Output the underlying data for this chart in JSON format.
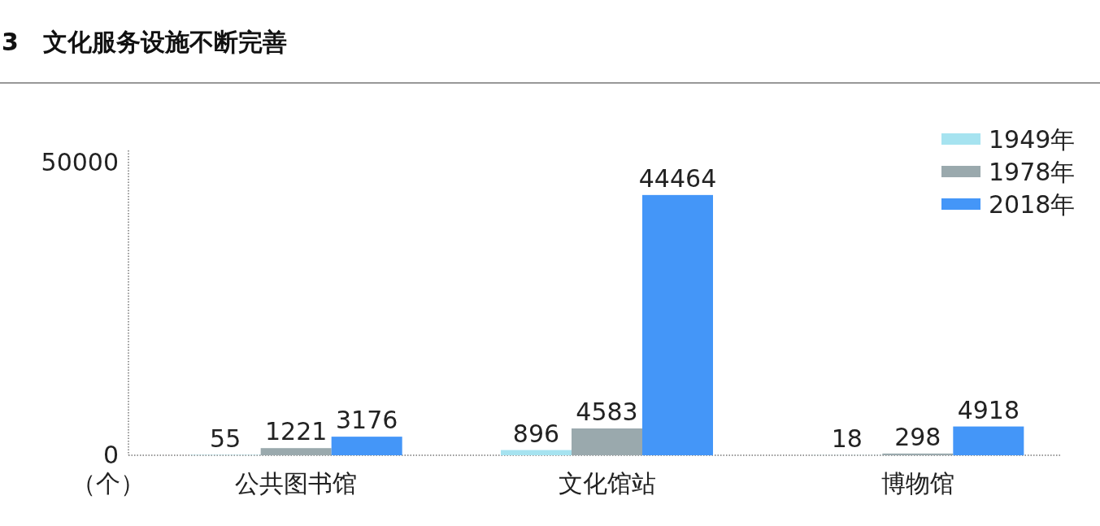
{
  "chart_data": {
    "type": "bar",
    "title": "3　文化服务设施不断完善",
    "ylabel": "（个）",
    "categories": [
      "公共图书馆",
      "文化馆站",
      "博物馆"
    ],
    "series": [
      {
        "name": "1949年",
        "color": "#a6e3f0",
        "values": [
          55,
          896,
          18
        ]
      },
      {
        "name": "1978年",
        "color": "#9aa9ad",
        "values": [
          1221,
          4583,
          298
        ]
      },
      {
        "name": "2018年",
        "color": "#4496f8",
        "values": [
          3176,
          44464,
          4918
        ]
      }
    ],
    "ylim": [
      0,
      50000
    ],
    "yticks": [
      0,
      50000
    ],
    "data_labels": true,
    "grid": false,
    "legend": "top right"
  }
}
